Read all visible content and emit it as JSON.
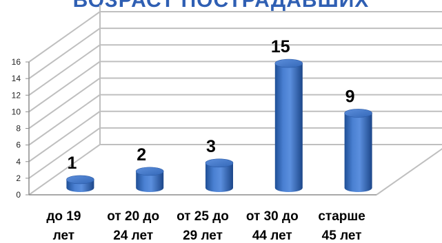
{
  "chart_data": {
    "type": "bar",
    "title": "ВОЗРАСТ ПОСТРАДАВШИХ",
    "categories": [
      "до 19 лет",
      "от 20 до 24 лет",
      "от 25 до 29 лет",
      "от 30 до 44 лет",
      "старше 45 лет"
    ],
    "category_lines": [
      [
        "до 19",
        "лет"
      ],
      [
        "от 20 до",
        "24 лет"
      ],
      [
        "от 25 до",
        "29 лет"
      ],
      [
        "от 30 до",
        "44 лет"
      ],
      [
        "старше",
        "45 лет"
      ]
    ],
    "values": [
      1,
      2,
      3,
      15,
      9
    ],
    "data_labels": [
      "1",
      "2",
      "3",
      "15",
      "9"
    ],
    "ylim": [
      0,
      16
    ],
    "yticks": [
      "0",
      "2",
      "4",
      "6",
      "8",
      "10",
      "12",
      "14",
      "16"
    ],
    "grid": true,
    "bar_shape": "cylinder-3d",
    "colors": {
      "bar": "#3a6fc4",
      "grid": "#bfbfbf"
    }
  }
}
